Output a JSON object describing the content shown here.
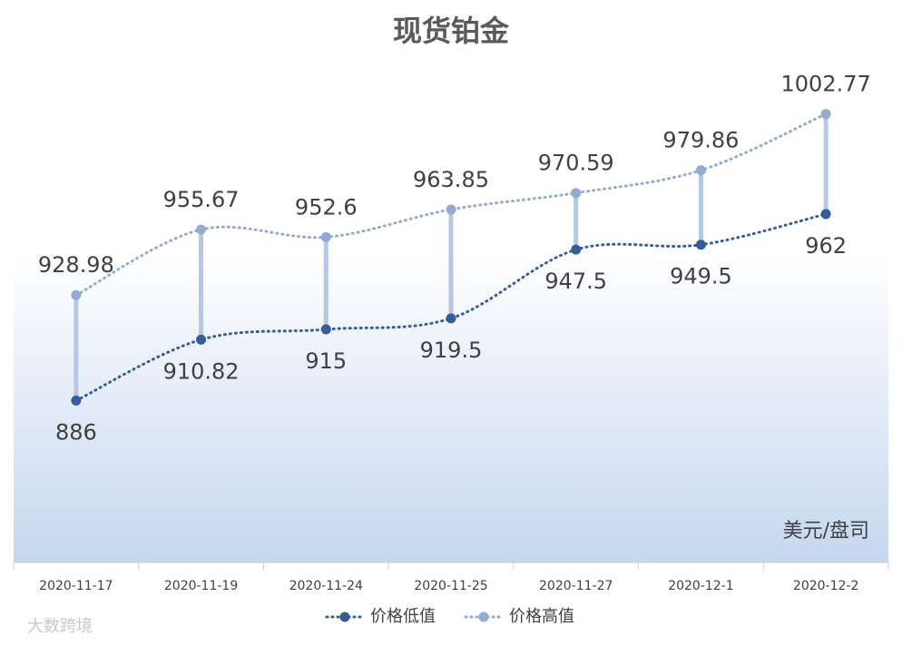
{
  "chart_data": {
    "type": "line",
    "title": "现货铂金",
    "annotation": "美元/盘司",
    "watermark": "大数跨境",
    "categories": [
      "2020-11-17",
      "2020-11-19",
      "2020-11-24",
      "2020-11-25",
      "2020-11-27",
      "2020-12-1",
      "2020-12-2"
    ],
    "series": [
      {
        "name": "价格低值",
        "color": "#335e99",
        "values": [
          886,
          910.82,
          915,
          919.5,
          947.5,
          949.5,
          962
        ]
      },
      {
        "name": "价格高值",
        "color": "#91abd2",
        "values": [
          928.98,
          955.67,
          952.6,
          963.85,
          970.59,
          979.86,
          1002.77
        ]
      }
    ],
    "hilo_color": "#b4c7e7",
    "ylim": [
      820,
      1030
    ]
  }
}
